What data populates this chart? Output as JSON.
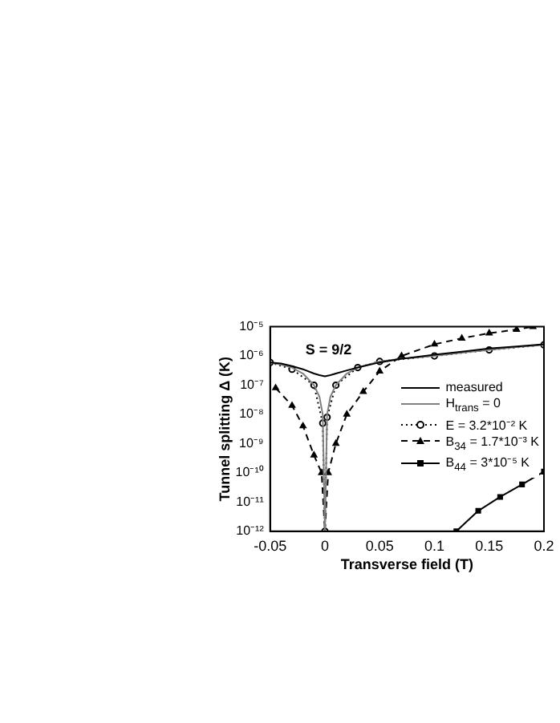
{
  "chart_data": {
    "type": "line",
    "xlabel": "Transverse field (T)",
    "ylabel": "Tunnel splitting Δ (K)",
    "annotations": [
      "S = 9/2"
    ],
    "log": "y",
    "grid": false,
    "legend": "right",
    "xlim": [
      -0.05,
      0.2
    ],
    "xticks": [
      -0.05,
      0,
      0.05,
      0.1,
      0.15,
      0.2
    ],
    "ylim": [
      1e-12,
      1e-05
    ],
    "yticks": [
      {
        "value": 1e-12,
        "label": "10⁻¹²"
      },
      {
        "value": 1e-11,
        "label": "10⁻¹¹"
      },
      {
        "value": 1e-10,
        "label": "10⁻¹⁰"
      },
      {
        "value": 1e-09,
        "label": "10⁻⁹"
      },
      {
        "value": 1e-08,
        "label": "10⁻⁸"
      },
      {
        "value": 1e-07,
        "label": "10⁻⁷"
      },
      {
        "value": 1e-06,
        "label": "10⁻⁶"
      },
      {
        "value": 1e-05,
        "label": "10⁻⁵"
      }
    ],
    "series": [
      {
        "name": "measured",
        "color": "#000000",
        "marker": "none",
        "line_style": "solid",
        "x": [
          -0.05,
          -0.04,
          -0.03,
          -0.02,
          -0.01,
          -0.005,
          0,
          0.005,
          0.01,
          0.02,
          0.03,
          0.05,
          0.07,
          0.1,
          0.125,
          0.15,
          0.175,
          0.2
        ],
        "values": [
          6e-07,
          5.5e-07,
          4.5e-07,
          3.5e-07,
          2.5e-07,
          2.2e-07,
          2e-07,
          2.2e-07,
          2.5e-07,
          3.2e-07,
          4e-07,
          6e-07,
          8e-07,
          1.1e-06,
          1.4e-06,
          1.8e-06,
          2.1e-06,
          2.5e-06
        ]
      },
      {
        "name": "H$_{trans}$ = 0",
        "color": "#808080",
        "marker": "none",
        "line_style": "solid",
        "x": [
          -0.05,
          -0.04,
          -0.03,
          -0.02,
          -0.01,
          -0.005,
          -0.002,
          0,
          0.002,
          0.005,
          0.01,
          0.02,
          0.03,
          0.05,
          0.07,
          0.1,
          0.125,
          0.15,
          0.175,
          0.2
        ],
        "values": [
          6e-07,
          5e-07,
          4e-07,
          2.5e-07,
          1e-07,
          4e-08,
          1e-08,
          1e-12,
          1e-08,
          4e-08,
          1e-07,
          2.5e-07,
          4e-07,
          6.5e-07,
          8e-07,
          1e-06,
          1.3e-06,
          1.6e-06,
          2e-06,
          2.4e-06
        ]
      },
      {
        "name": "E = 3.2*10⁻² K",
        "color": "#000000",
        "marker": "circle",
        "line_style": "dotted",
        "x": [
          -0.05,
          -0.03,
          -0.01,
          -0.002,
          0,
          0.002,
          0.01,
          0.03,
          0.05,
          0.1,
          0.15,
          0.2
        ],
        "values": [
          6e-07,
          3.5e-07,
          1e-07,
          5e-09,
          1e-12,
          8e-09,
          1e-07,
          4e-07,
          6.5e-07,
          1e-06,
          1.6e-06,
          2.4e-06
        ]
      },
      {
        "name": "B$_{34}$ = 1.7*10⁻³ K",
        "color": "#000000",
        "marker": "triangle",
        "line_style": "dashed",
        "x": [
          -0.045,
          -0.03,
          -0.02,
          -0.01,
          -0.003,
          0,
          0.003,
          0.01,
          0.02,
          0.035,
          0.05,
          0.07,
          0.1,
          0.125,
          0.15,
          0.175,
          0.19
        ],
        "values": [
          8e-08,
          2e-08,
          4e-09,
          4e-10,
          1e-10,
          1e-12,
          1e-10,
          1e-09,
          1e-08,
          6e-08,
          3e-07,
          1e-06,
          2.5e-06,
          4e-06,
          6e-06,
          8e-06,
          1e-05
        ]
      },
      {
        "name": "B$_{44}$ = 3*10⁻⁵ K",
        "color": "#000000",
        "marker": "square",
        "line_style": "solid",
        "x": [
          0.12,
          0.14,
          0.16,
          0.18,
          0.2
        ],
        "values": [
          1e-12,
          5e-12,
          1.5e-11,
          4e-11,
          1.1e-10
        ]
      }
    ]
  }
}
